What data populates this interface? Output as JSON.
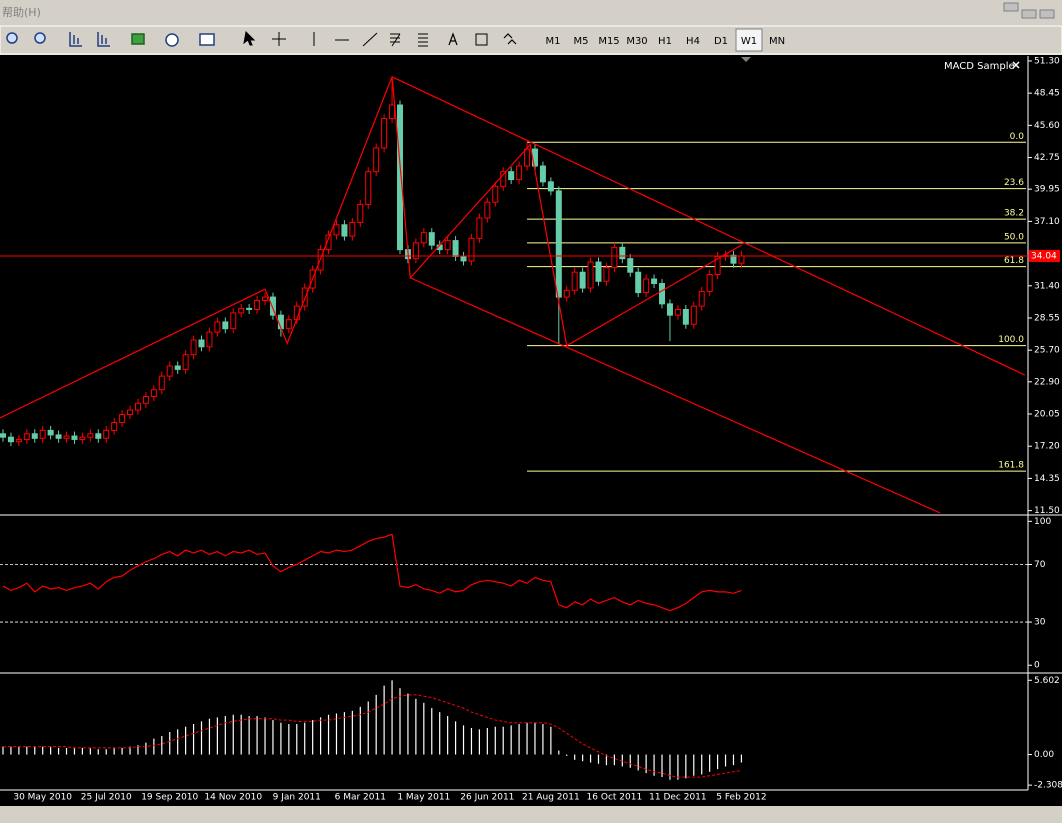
{
  "menu": {
    "help": "帮助(H)"
  },
  "toolbar": {
    "timeframes": [
      "M1",
      "M5",
      "M15",
      "M30",
      "H1",
      "H4",
      "D1",
      "W1",
      "MN"
    ],
    "active": "W1"
  },
  "expert": "MACD Sample",
  "chart_data": [
    {
      "type": "candlestick",
      "categories": [
        null,
        null,
        null,
        null,
        null,
        "30 May 2010",
        null,
        null,
        null,
        null,
        null,
        null,
        null,
        "25 Jul 2010",
        null,
        null,
        null,
        null,
        null,
        null,
        null,
        "19 Sep 2010",
        null,
        null,
        null,
        null,
        null,
        null,
        null,
        "14 Nov 2010",
        null,
        null,
        null,
        null,
        null,
        null,
        null,
        "9 Jan 2011",
        null,
        null,
        null,
        null,
        null,
        null,
        null,
        "6 Mar 2011",
        null,
        null,
        null,
        null,
        null,
        null,
        null,
        "1 May 2011",
        null,
        null,
        null,
        null,
        null,
        null,
        null,
        "26 Jun 2011",
        null,
        null,
        null,
        null,
        null,
        null,
        null,
        "21 Aug 2011",
        null,
        null,
        null,
        null,
        null,
        null,
        null,
        "16 Oct 2011",
        null,
        null,
        null,
        null,
        null,
        null,
        null,
        "11 Dec 2011",
        null,
        null,
        null,
        null,
        null,
        null,
        null,
        "5 Feb 2012"
      ],
      "open": [
        18.3,
        18.0,
        17.6,
        17.8,
        18.3,
        17.9,
        18.6,
        18.2,
        17.9,
        18.1,
        17.8,
        18.0,
        18.3,
        17.9,
        18.6,
        19.3,
        20.0,
        20.4,
        21.0,
        21.6,
        22.2,
        23.4,
        24.3,
        24.0,
        25.3,
        26.6,
        26.0,
        27.3,
        28.2,
        27.6,
        29.0,
        29.4,
        29.3,
        30.1,
        30.4,
        28.8,
        27.6,
        28.4,
        29.6,
        31.2,
        32.8,
        34.6,
        35.9,
        36.8,
        35.8,
        37.0,
        38.6,
        41.5,
        43.6,
        46.2,
        47.4,
        34.6,
        33.8,
        35.2,
        36.1,
        35.0,
        34.6,
        35.4,
        34.0,
        33.6,
        35.6,
        37.4,
        38.8,
        40.2,
        41.5,
        40.8,
        42.0,
        43.5,
        42.0,
        40.6,
        39.8,
        30.4,
        31.0,
        32.6,
        31.2,
        33.5,
        31.8,
        33.0,
        34.8,
        33.8,
        32.6,
        30.8,
        32.0,
        31.6,
        29.8,
        28.8,
        29.3,
        28.0,
        29.6,
        30.9,
        32.4,
        34.0,
        34.1,
        33.4
      ],
      "high": [
        18.7,
        18.4,
        18.2,
        18.7,
        18.7,
        19.0,
        19.0,
        18.6,
        18.5,
        18.5,
        18.4,
        18.7,
        18.7,
        19.0,
        19.7,
        20.4,
        20.8,
        21.4,
        22.0,
        22.6,
        23.8,
        24.7,
        24.7,
        25.7,
        27.0,
        27.0,
        27.7,
        28.6,
        28.6,
        29.4,
        29.8,
        29.8,
        30.5,
        30.8,
        30.8,
        29.2,
        28.8,
        30.0,
        31.6,
        33.2,
        35.0,
        36.3,
        37.2,
        37.2,
        37.4,
        39.0,
        41.9,
        44.0,
        46.6,
        49.7,
        47.8,
        35.0,
        35.6,
        36.5,
        36.5,
        35.4,
        35.8,
        35.8,
        34.4,
        36.0,
        37.8,
        39.2,
        40.6,
        41.9,
        41.9,
        42.4,
        44.1,
        43.9,
        42.4,
        41.0,
        40.2,
        31.4,
        33.0,
        33.0,
        33.9,
        33.9,
        33.4,
        35.2,
        35.2,
        34.2,
        33.0,
        32.4,
        32.4,
        32.0,
        30.2,
        29.7,
        29.7,
        30.0,
        31.3,
        32.8,
        34.4,
        34.5,
        34.5,
        34.5
      ],
      "low": [
        17.6,
        17.2,
        17.2,
        17.4,
        17.5,
        17.5,
        17.8,
        17.5,
        17.5,
        17.4,
        17.4,
        17.6,
        17.5,
        17.5,
        18.2,
        18.9,
        19.6,
        20.0,
        20.6,
        21.2,
        21.8,
        23.0,
        23.6,
        23.6,
        24.9,
        25.6,
        25.6,
        26.9,
        27.2,
        27.2,
        28.6,
        28.9,
        28.9,
        29.7,
        28.4,
        26.9,
        27.2,
        28.0,
        29.2,
        30.8,
        32.4,
        34.2,
        35.5,
        35.4,
        35.4,
        36.6,
        38.2,
        41.1,
        43.2,
        45.8,
        34.2,
        33.4,
        33.4,
        34.8,
        34.6,
        34.2,
        34.2,
        33.6,
        33.2,
        33.2,
        35.2,
        37.0,
        38.4,
        39.8,
        40.4,
        40.4,
        41.6,
        41.6,
        40.2,
        39.4,
        26.2,
        30.0,
        30.6,
        30.8,
        30.8,
        31.4,
        31.4,
        32.6,
        33.4,
        32.2,
        30.4,
        30.4,
        31.2,
        29.4,
        26.5,
        28.4,
        27.6,
        27.6,
        29.2,
        30.5,
        32.0,
        33.6,
        33.0,
        33.0
      ],
      "close": [
        18.0,
        17.6,
        17.8,
        18.3,
        17.9,
        18.6,
        18.2,
        17.9,
        18.1,
        17.8,
        18.0,
        18.3,
        17.9,
        18.6,
        19.3,
        20.0,
        20.4,
        21.0,
        21.6,
        22.2,
        23.4,
        24.3,
        24.0,
        25.3,
        26.6,
        26.0,
        27.3,
        28.2,
        27.6,
        29.0,
        29.4,
        29.3,
        30.1,
        30.4,
        28.8,
        27.6,
        28.4,
        29.6,
        31.2,
        32.8,
        34.6,
        35.9,
        36.8,
        35.8,
        37.0,
        38.6,
        41.5,
        43.6,
        46.2,
        47.4,
        34.6,
        33.8,
        35.2,
        36.1,
        35.0,
        34.6,
        35.4,
        34.0,
        33.6,
        35.6,
        37.4,
        38.8,
        40.2,
        41.5,
        40.8,
        42.0,
        43.5,
        42.0,
        40.6,
        39.8,
        30.4,
        31.0,
        32.6,
        31.2,
        33.5,
        31.8,
        33.0,
        34.8,
        33.8,
        32.6,
        30.8,
        32.0,
        31.6,
        29.8,
        28.8,
        29.3,
        28.0,
        29.6,
        30.9,
        32.4,
        34.0,
        34.1,
        33.4,
        34.04
      ],
      "up_color": "#ff0000",
      "down_color": "#66cdaa",
      "ylim": [
        11.2,
        51.65
      ],
      "yticks": [
        {
          "value": 51.3,
          "label": "51.30"
        },
        48.45,
        {
          "value": 45.6,
          "label": "45.60"
        },
        42.75,
        39.95,
        {
          "value": 37.1,
          "label": "37.10"
        },
        {
          "value": 31.4,
          "label": "31.40"
        },
        28.55,
        {
          "value": 25.7,
          "label": "25.70"
        },
        {
          "value": 22.9,
          "label": "22.90"
        },
        20.05,
        {
          "value": 17.2,
          "label": "17.20"
        },
        14.35,
        {
          "value": 11.5,
          "label": "11.50"
        }
      ],
      "last_price": 34.04,
      "fibo": {
        "start": 66,
        "color": "#ffff99",
        "levels": [
          {
            "label": "0.0",
            "value": 44.1
          },
          {
            "label": "23.6",
            "value": 40.0
          },
          {
            "label": "38.2",
            "value": 37.3
          },
          {
            "label": "50.0",
            "value": 35.2
          },
          {
            "label": "61.8",
            "value": 33.1
          },
          {
            "label": "100.0",
            "value": 26.1
          },
          {
            "label": "161.8",
            "value": 15.0
          }
        ]
      },
      "trendlines": [
        {
          "x": [
            -0.4,
            33,
            35.8,
            49,
            51.3,
            66.4,
            71,
            93
          ],
          "y": [
            19.7,
            31.1,
            26.3,
            49.9,
            32.1,
            43.9,
            26.1,
            35.0
          ]
        },
        {
          "x": [
            49,
            128.7
          ],
          "y": [
            49.9,
            23.5
          ]
        },
        {
          "x": [
            51.3,
            118
          ],
          "y": [
            32.1,
            11.3
          ]
        }
      ],
      "line_color": "#ff0000"
    },
    {
      "type": "line",
      "values": [
        55,
        52,
        54,
        57,
        51,
        55,
        53,
        54,
        52,
        54,
        55,
        57,
        53,
        58,
        61,
        62,
        66,
        69,
        72,
        74,
        77,
        79,
        76,
        80,
        78,
        80,
        77,
        79,
        76,
        79,
        78,
        80,
        77,
        78,
        69,
        65,
        68,
        70,
        73,
        76,
        79,
        78,
        80,
        79,
        80,
        83,
        86,
        88,
        89,
        91,
        55,
        54,
        56,
        53,
        52,
        50,
        53,
        51,
        52,
        56,
        58,
        59,
        58,
        57,
        55,
        59,
        57,
        61,
        59,
        58,
        42,
        40,
        44,
        42,
        46,
        43,
        45,
        47,
        44,
        42,
        45,
        43,
        42,
        40,
        38,
        40,
        43,
        47,
        51,
        52,
        51,
        51,
        50,
        52
      ],
      "color": "#ff0000",
      "ylim": [
        -4,
        103
      ],
      "yticks": [
        0,
        30,
        70,
        100
      ],
      "levels": [
        30,
        70
      ]
    },
    {
      "type": "macd",
      "histogram": [
        0.6,
        0.6,
        0.6,
        0.6,
        0.6,
        0.6,
        0.6,
        0.5,
        0.5,
        0.5,
        0.5,
        0.5,
        0.4,
        0.4,
        0.5,
        0.5,
        0.6,
        0.7,
        0.9,
        1.2,
        1.4,
        1.7,
        1.9,
        2.1,
        2.3,
        2.5,
        2.7,
        2.8,
        2.9,
        3.0,
        3.0,
        2.9,
        2.9,
        2.8,
        2.6,
        2.4,
        2.3,
        2.3,
        2.4,
        2.6,
        2.8,
        3.0,
        3.1,
        3.2,
        3.3,
        3.6,
        4.0,
        4.5,
        5.2,
        5.6,
        5.0,
        4.6,
        4.2,
        3.9,
        3.5,
        3.2,
        2.9,
        2.5,
        2.2,
        2.0,
        1.9,
        2.0,
        2.1,
        2.1,
        2.2,
        2.3,
        2.4,
        2.4,
        2.3,
        2.1,
        0.3,
        -0.1,
        -0.4,
        -0.5,
        -0.6,
        -0.7,
        -0.8,
        -0.8,
        -0.9,
        -1.0,
        -1.2,
        -1.4,
        -1.6,
        -1.7,
        -1.9,
        -1.9,
        -1.8,
        -1.6,
        -1.5,
        -1.3,
        -1.1,
        -0.9,
        -0.8,
        -0.6
      ],
      "signal": [
        0.6,
        0.6,
        0.6,
        0.6,
        0.6,
        0.6,
        0.6,
        0.6,
        0.6,
        0.5,
        0.5,
        0.5,
        0.5,
        0.5,
        0.5,
        0.5,
        0.5,
        0.6,
        0.6,
        0.7,
        0.8,
        1.0,
        1.2,
        1.4,
        1.6,
        1.8,
        2.0,
        2.2,
        2.4,
        2.5,
        2.6,
        2.7,
        2.7,
        2.7,
        2.7,
        2.6,
        2.6,
        2.5,
        2.5,
        2.5,
        2.6,
        2.6,
        2.7,
        2.8,
        2.9,
        3.0,
        3.2,
        3.5,
        3.8,
        4.2,
        4.4,
        4.5,
        4.5,
        4.4,
        4.3,
        4.1,
        3.9,
        3.7,
        3.5,
        3.2,
        3.0,
        2.8,
        2.6,
        2.5,
        2.4,
        2.4,
        2.4,
        2.4,
        2.4,
        2.3,
        2.0,
        1.6,
        1.2,
        0.8,
        0.5,
        0.2,
        -0.1,
        -0.3,
        -0.5,
        -0.7,
        -0.9,
        -1.1,
        -1.3,
        -1.4,
        -1.6,
        -1.7,
        -1.7,
        -1.7,
        -1.7,
        -1.6,
        -1.5,
        -1.4,
        -1.3,
        -1.2
      ],
      "bar_color": "#ffffff",
      "signal_color": "#ff0000",
      "ylim": [
        -2.6,
        6.0
      ],
      "yticks": [
        -2.308,
        {
          "value": 0,
          "label": "0.00"
        },
        5.602
      ]
    }
  ]
}
